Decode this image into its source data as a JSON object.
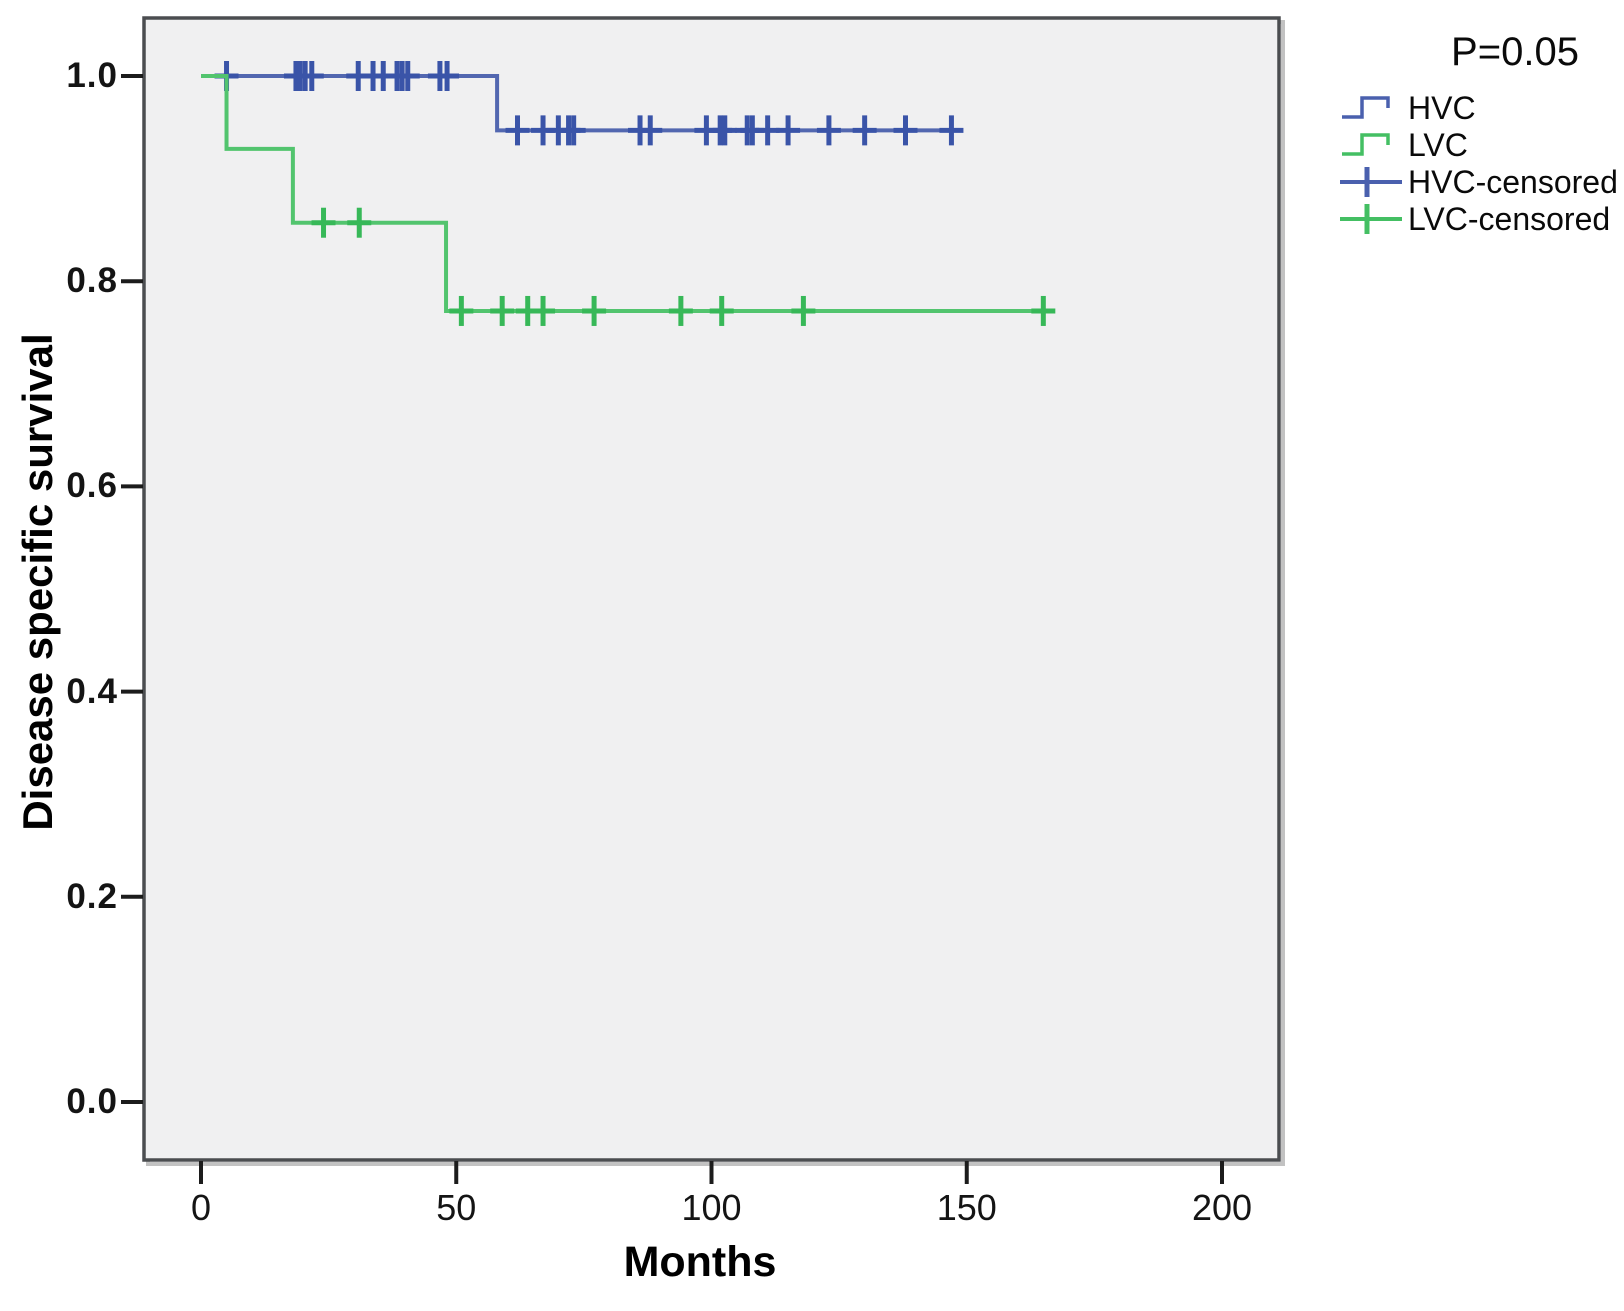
{
  "figure": {
    "background": "#ffffff",
    "plot_background": "#f0f0f1",
    "plot_border_color": "#4b4d50",
    "tick_color": "#1c1c1c"
  },
  "legend": {
    "p_value": "P=0.05",
    "entries": [
      {
        "label": "HVC",
        "glyph": "step",
        "color": "#4a60ae"
      },
      {
        "label": "LVC",
        "glyph": "step",
        "color": "#44bf63"
      },
      {
        "label": "HVC-censored",
        "glyph": "plus",
        "color": "#4a60ae"
      },
      {
        "label": "LVC-censored",
        "glyph": "plus",
        "color": "#44bf63"
      }
    ]
  },
  "chart_data": {
    "type": "line",
    "subtype": "kaplan_meier_step_function",
    "title": "",
    "xlabel": "Months",
    "ylabel": "Disease specific survival",
    "xticks": [
      0,
      50,
      100,
      150,
      200
    ],
    "ytick_labels": [
      "0.0",
      "0.2",
      "0.4",
      "0.6",
      "0.8",
      "1.0"
    ],
    "xlim": [
      -11,
      211
    ],
    "ylim": [
      -0.057,
      1.057
    ],
    "grid": false,
    "legend_position": "outside-top-right",
    "annotations": [
      {
        "text": "P=0.05",
        "position": "above-legend"
      }
    ],
    "series": [
      {
        "name": "HVC",
        "line_color": "#5267b0",
        "censor_color": "#3a54a8",
        "steps": [
          [
            0,
            1.0
          ],
          [
            58,
            1.0
          ],
          [
            58,
            0.947
          ],
          [
            149,
            0.947
          ]
        ],
        "censored": [
          [
            5,
            1.0
          ],
          [
            18.6,
            1.0
          ],
          [
            19.4,
            1.0
          ],
          [
            20.4,
            1.0
          ],
          [
            21.7,
            1.0
          ],
          [
            30.8,
            1.0
          ],
          [
            33.7,
            1.0
          ],
          [
            35.7,
            1.0
          ],
          [
            38.4,
            1.0
          ],
          [
            39.4,
            1.0
          ],
          [
            40.5,
            1.0
          ],
          [
            46.8,
            1.0
          ],
          [
            48.2,
            1.0
          ],
          [
            62,
            0.947
          ],
          [
            67,
            0.947
          ],
          [
            70,
            0.947
          ],
          [
            72,
            0.947
          ],
          [
            73,
            0.947
          ],
          [
            86,
            0.947
          ],
          [
            88,
            0.947
          ],
          [
            99,
            0.947
          ],
          [
            101.7,
            0.947
          ],
          [
            102.6,
            0.947
          ],
          [
            107,
            0.947
          ],
          [
            108,
            0.947
          ],
          [
            111,
            0.947
          ],
          [
            115,
            0.947
          ],
          [
            123,
            0.947
          ],
          [
            130,
            0.947
          ],
          [
            138,
            0.947
          ],
          [
            147,
            0.947
          ]
        ]
      },
      {
        "name": "LVC",
        "line_color": "#52c46e",
        "censor_color": "#37b858",
        "steps": [
          [
            0,
            1.0
          ],
          [
            5,
            1.0
          ],
          [
            5,
            0.929
          ],
          [
            18,
            0.929
          ],
          [
            18,
            0.857
          ],
          [
            48,
            0.857
          ],
          [
            48,
            0.771
          ],
          [
            167,
            0.771
          ]
        ],
        "censored": [
          [
            24,
            0.857
          ],
          [
            31,
            0.857
          ],
          [
            51,
            0.771
          ],
          [
            59,
            0.771
          ],
          [
            64,
            0.771
          ],
          [
            67,
            0.771
          ],
          [
            77,
            0.771
          ],
          [
            94,
            0.771
          ],
          [
            102,
            0.771
          ],
          [
            118,
            0.771
          ],
          [
            165,
            0.771
          ]
        ]
      }
    ]
  }
}
